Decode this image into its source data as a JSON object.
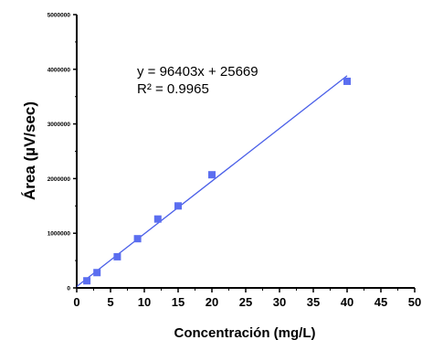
{
  "chart_data": {
    "type": "scatter",
    "xlabel": "Concentración (mg/L)",
    "ylabel": "Área (µV/sec)",
    "xlim": [
      0,
      50
    ],
    "ylim": [
      0,
      5000000
    ],
    "x_ticks": [
      0,
      5,
      10,
      15,
      20,
      25,
      30,
      35,
      40,
      45,
      50
    ],
    "y_ticks": [
      0,
      1000000,
      2000000,
      3000000,
      4000000,
      5000000
    ],
    "x_tick_labels": [
      "0",
      "5",
      "10",
      "15",
      "20",
      "25",
      "30",
      "35",
      "40",
      "45",
      "50"
    ],
    "y_tick_labels": [
      "0",
      "1000000",
      "2000000",
      "3000000",
      "4000000",
      "5000000"
    ],
    "grid": false,
    "series": [
      {
        "x": [
          1.5,
          3,
          6,
          9,
          12,
          15,
          20,
          40
        ],
        "y": [
          130000,
          280000,
          570000,
          900000,
          1260000,
          1500000,
          2070000,
          3780000
        ]
      }
    ],
    "trendline": {
      "slope": 96403,
      "intercept": 25669,
      "x_range": [
        0,
        40
      ]
    },
    "annotations": [
      "y = 96403x + 25669",
      "R² = 0.9965"
    ],
    "colors": {
      "marker": "#5b6ef0",
      "line": "#4a5fe8",
      "axis": "#000000"
    }
  }
}
